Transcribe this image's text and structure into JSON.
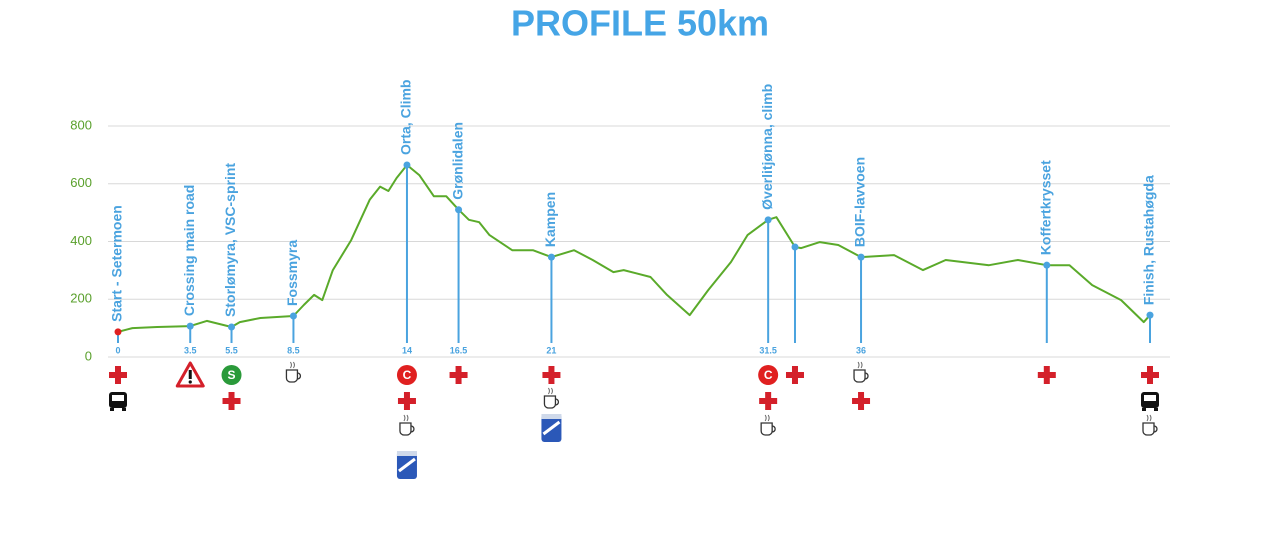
{
  "chart_data": {
    "type": "line",
    "title": "PROFILE 50km",
    "xlim": [
      0,
      50
    ],
    "ylim": [
      0,
      800
    ],
    "yticks": [
      0,
      200,
      400,
      600,
      800
    ],
    "xticks": [
      0,
      3.5,
      5.5,
      8.5,
      14,
      16.5,
      21,
      31.5,
      36
    ],
    "grid": true,
    "series": [
      {
        "color": "#5aaa2a",
        "x": [
          0,
          0.7,
          1.9,
          3.5,
          4.3,
          5.5,
          5.9,
          6.9,
          8.5,
          9.0,
          9.5,
          9.9,
          10.4,
          11.3,
          12.2,
          12.7,
          13.1,
          13.5,
          14,
          14.6,
          15.3,
          15.9,
          16.5,
          17.0,
          17.5,
          18.0,
          19.1,
          20.1,
          21,
          22.1,
          23.0,
          24.0,
          24.5,
          25.8,
          26.6,
          27.7,
          28.6,
          29.7,
          30.5,
          31.5,
          31.9,
          32.8,
          33.1,
          34.0,
          34.9,
          36,
          37.6,
          39.0,
          40.1,
          42.2,
          43.6,
          45.0,
          46.1,
          47.2,
          48.6,
          49.7,
          50
        ],
        "values": [
          87,
          100,
          104,
          107,
          125,
          104,
          121,
          135,
          142,
          180,
          215,
          197,
          300,
          405,
          545,
          590,
          575,
          620,
          665,
          630,
          557,
          557,
          510,
          475,
          467,
          422,
          370,
          370,
          346,
          370,
          336,
          294,
          301,
          277,
          215,
          145,
          232,
          329,
          422,
          475,
          484,
          381,
          377,
          398,
          388,
          346,
          353,
          301,
          336,
          318,
          336,
          318,
          318,
          249,
          197,
          121,
          145
        ]
      }
    ],
    "stations": [
      {
        "name": "Start - Setermoen",
        "x": 0,
        "elevation": 87,
        "color": "#e02020"
      },
      {
        "name": "Crossing main road",
        "x": 3.5,
        "elevation": 107,
        "color": "#4aa3df"
      },
      {
        "name": "Storlømyra, VSC-sprint",
        "x": 5.5,
        "elevation": 104,
        "color": "#4aa3df",
        "badge": "S",
        "badge_color": "#2a9a3a"
      },
      {
        "name": "Fossmyra",
        "x": 8.5,
        "elevation": 142,
        "color": "#4aa3df"
      },
      {
        "name": "Orta, Climb",
        "x": 14,
        "elevation": 665,
        "color": "#4aa3df",
        "badge": "C",
        "badge_color": "#e02020"
      },
      {
        "name": "Grønlidalen",
        "x": 16.5,
        "elevation": 510,
        "color": "#4aa3df"
      },
      {
        "name": "Kampen",
        "x": 21,
        "elevation": 346,
        "color": "#4aa3df"
      },
      {
        "name": "Øverlitjønna, climb",
        "x": 31.5,
        "elevation": 475,
        "color": "#4aa3df",
        "badge": "C",
        "badge_color": "#e02020"
      },
      {
        "name": null,
        "x": 32.8,
        "elevation": 381,
        "color": "#4aa3df"
      },
      {
        "name": "BOIF-lavvoen",
        "x": 36,
        "elevation": 346,
        "color": "#4aa3df"
      },
      {
        "name": "Koffertkrysset",
        "x": 45.0,
        "elevation": 318,
        "color": "#4aa3df"
      },
      {
        "name": "Finish, Rustahøgda",
        "x": 50,
        "elevation": 145,
        "color": "#4aa3df"
      }
    ]
  }
}
